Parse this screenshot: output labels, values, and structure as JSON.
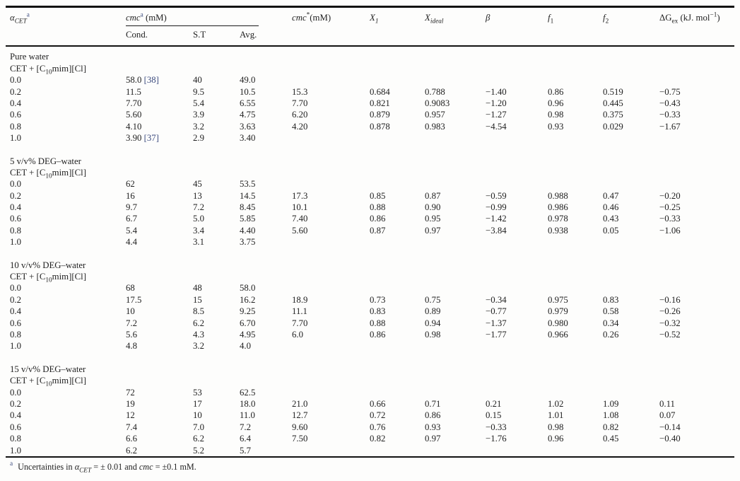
{
  "page": {
    "background": "#fdfdfc",
    "text_color": "#222222",
    "rule_color": "#121212",
    "citation_color": "#3d4c7f"
  },
  "table": {
    "headers": {
      "alpha": {
        "parts": [
          {
            "t": "α",
            "style": "i"
          },
          {
            "t": "CET",
            "style": "i-sub"
          },
          {
            "t": "a",
            "style": "sup-cite"
          }
        ]
      },
      "cmc_group": {
        "parts": [
          {
            "t": "cmc",
            "style": "i"
          },
          {
            "t": "a",
            "style": "sup-cite"
          },
          {
            "t": " (mM)"
          }
        ]
      },
      "cond": "Cond.",
      "st": "S.T",
      "avg": "Avg.",
      "cmc_star": {
        "parts": [
          {
            "t": "cmc",
            "style": "i"
          },
          {
            "t": "*",
            "style": "sup"
          },
          {
            "t": "(mM)"
          }
        ]
      },
      "x1": {
        "parts": [
          {
            "t": "X",
            "style": "i"
          },
          {
            "t": "1",
            "style": "i-sub"
          }
        ]
      },
      "x_ideal": {
        "parts": [
          {
            "t": "X",
            "style": "i"
          },
          {
            "t": "ideal",
            "style": "i-sub"
          }
        ]
      },
      "beta": {
        "parts": [
          {
            "t": "β",
            "style": "i"
          }
        ]
      },
      "f1": {
        "parts": [
          {
            "t": "f",
            "style": "i"
          },
          {
            "t": "1",
            "style": "sub"
          }
        ]
      },
      "f2": {
        "parts": [
          {
            "t": "f",
            "style": "i"
          },
          {
            "t": "2",
            "style": "sub"
          }
        ]
      },
      "dg_ex": {
        "parts": [
          {
            "t": "ΔG"
          },
          {
            "t": "ex",
            "style": "sub"
          },
          {
            "t": " (kJ. mol"
          },
          {
            "t": "−1",
            "style": "sup"
          },
          {
            "t": ")"
          }
        ]
      }
    },
    "sections": [
      {
        "title": "Pure water",
        "compound": [
          {
            "t": "CET + [C"
          },
          {
            "t": "10",
            "style": "sub"
          },
          {
            "t": "mim][Cl]"
          }
        ],
        "rows": [
          [
            "0.0",
            [
              "58.0 ",
              {
                "t": "[38]",
                "style": "cite"
              }
            ],
            "40",
            "49.0",
            "",
            "",
            "",
            "",
            "",
            "",
            ""
          ],
          [
            "0.2",
            "11.5",
            "9.5",
            "10.5",
            "15.3",
            "0.684",
            "0.788",
            "−1.40",
            "0.86",
            "0.519",
            "−0.75"
          ],
          [
            "0.4",
            "7.70",
            "5.4",
            "6.55",
            "7.70",
            "0.821",
            "0.9083",
            "−1.20",
            "0.96",
            "0.445",
            "−0.43"
          ],
          [
            "0.6",
            "5.60",
            "3.9",
            "4.75",
            "6.20",
            "0.879",
            "0.957",
            "−1.27",
            "0.98",
            "0.375",
            "−0.33"
          ],
          [
            "0.8",
            "4.10",
            "3.2",
            "3.63",
            "4.20",
            "0.878",
            "0.983",
            "−4.54",
            "0.93",
            "0.029",
            "−1.67"
          ],
          [
            "1.0",
            [
              "3.90 ",
              {
                "t": "[37]",
                "style": "cite"
              }
            ],
            "2.9",
            "3.40",
            "",
            "",
            "",
            "",
            "",
            "",
            ""
          ]
        ]
      },
      {
        "title": "5 v/v% DEG–water",
        "compound": [
          {
            "t": "CET + [C"
          },
          {
            "t": "10",
            "style": "sub"
          },
          {
            "t": "mim][Cl]"
          }
        ],
        "rows": [
          [
            "0.0",
            "62",
            "45",
            "53.5",
            "",
            "",
            "",
            "",
            "",
            "",
            ""
          ],
          [
            "0.2",
            "16",
            "13",
            "14.5",
            "17.3",
            "0.85",
            "0.87",
            "−0.59",
            "0.988",
            "0.47",
            "−0.20"
          ],
          [
            "0.4",
            "9.7",
            "7.2",
            "8.45",
            "10.1",
            "0.88",
            "0.90",
            "−0.99",
            "0.986",
            "0.46",
            "−0.25"
          ],
          [
            "0.6",
            "6.7",
            "5.0",
            "5.85",
            "7.40",
            "0.86",
            "0.95",
            "−1.42",
            "0.978",
            "0.43",
            "−0.33"
          ],
          [
            "0.8",
            "5.4",
            "3.4",
            "4.40",
            "5.60",
            "0.87",
            "0.97",
            "−3.84",
            "0.938",
            "0.05",
            "−1.06"
          ],
          [
            "1.0",
            "4.4",
            "3.1",
            "3.75",
            "",
            "",
            "",
            "",
            "",
            "",
            ""
          ]
        ]
      },
      {
        "title": "10 v/v% DEG–water",
        "compound": [
          {
            "t": "CET + [C"
          },
          {
            "t": "10",
            "style": "sub"
          },
          {
            "t": "mim][Cl]"
          }
        ],
        "rows": [
          [
            "0.0",
            "68",
            "48",
            "58.0",
            "",
            "",
            "",
            "",
            "",
            "",
            ""
          ],
          [
            "0.2",
            "17.5",
            "15",
            "16.2",
            "18.9",
            "0.73",
            "0.75",
            "−0.34",
            "0.975",
            "0.83",
            "−0.16"
          ],
          [
            "0.4",
            "10",
            "8.5",
            "9.25",
            "11.1",
            "0.83",
            "0.89",
            "−0.77",
            "0.979",
            "0.58",
            "−0.26"
          ],
          [
            "0.6",
            "7.2",
            "6.2",
            "6.70",
            "7.70",
            "0.88",
            "0.94",
            "−1.37",
            "0.980",
            "0.34",
            "−0.32"
          ],
          [
            "0.8",
            "5.6",
            "4.3",
            "4.95",
            "6.0",
            "0.86",
            "0.98",
            "−1.77",
            "0.966",
            "0.26",
            "−0.52"
          ],
          [
            "1.0",
            "4.8",
            "3.2",
            "4.0",
            "",
            "",
            "",
            "",
            "",
            "",
            ""
          ]
        ]
      },
      {
        "title": "15 v/v% DEG–water",
        "compound": [
          {
            "t": "CET + [C"
          },
          {
            "t": "10",
            "style": "sub"
          },
          {
            "t": "mim][Cl]"
          }
        ],
        "rows": [
          [
            "0.0",
            "72",
            "53",
            "62.5",
            "",
            "",
            "",
            "",
            "",
            "",
            ""
          ],
          [
            "0.2",
            "19",
            "17",
            "18.0",
            "21.0",
            "0.66",
            "0.71",
            "0.21",
            "1.02",
            "1.09",
            "0.11"
          ],
          [
            "0.4",
            "12",
            "10",
            "11.0",
            "12.7",
            "0.72",
            "0.86",
            "0.15",
            "1.01",
            "1.08",
            "0.07"
          ],
          [
            "0.6",
            "7.4",
            "7.0",
            "7.2",
            "9.60",
            "0.76",
            "0.93",
            "−0.33",
            "0.98",
            "0.82",
            "−0.14"
          ],
          [
            "0.8",
            "6.6",
            "6.2",
            "6.4",
            "7.50",
            "0.82",
            "0.97",
            "−1.76",
            "0.96",
            "0.45",
            "−0.40"
          ],
          [
            "1.0",
            "6.2",
            "5.2",
            "5.7",
            "",
            "",
            "",
            "",
            "",
            "",
            ""
          ]
        ]
      }
    ],
    "footnote": [
      {
        "t": "a",
        "style": "sup-cite"
      },
      {
        "t": "Uncertainties in "
      },
      {
        "t": "α",
        "style": "i"
      },
      {
        "t": "CET",
        "style": "i-sub"
      },
      {
        "t": " = ± 0.01 and "
      },
      {
        "t": "cmc",
        "style": "i"
      },
      {
        "t": " = ±0.1 mM."
      }
    ]
  }
}
